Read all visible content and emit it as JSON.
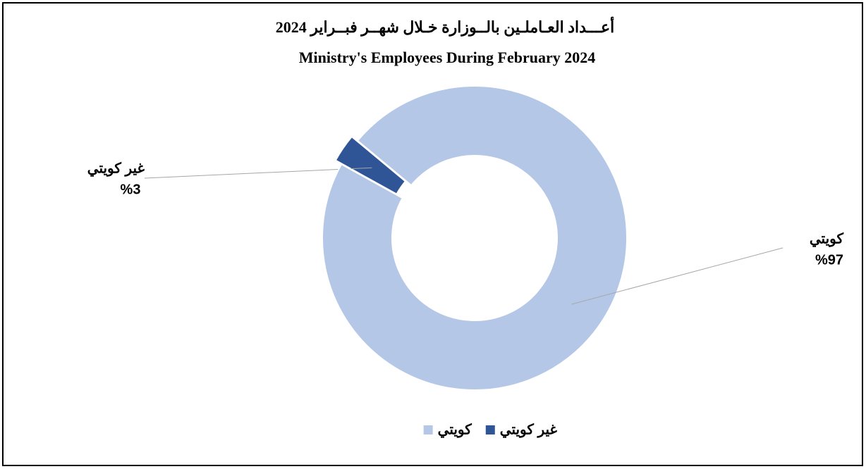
{
  "chart_data": {
    "type": "donut",
    "title": "أعـــداد العـاملـين بالــوزارة خـلال شهــر فبــراير 2024",
    "subtitle": "Ministry's Employees During February 2024",
    "categories": [
      "غير كويتي",
      "كويتي"
    ],
    "values": [
      3,
      97
    ],
    "value_labels": [
      "%3",
      "%97"
    ],
    "colors": [
      "#2f5597",
      "#b4c7e7"
    ],
    "legend": "bottom"
  }
}
